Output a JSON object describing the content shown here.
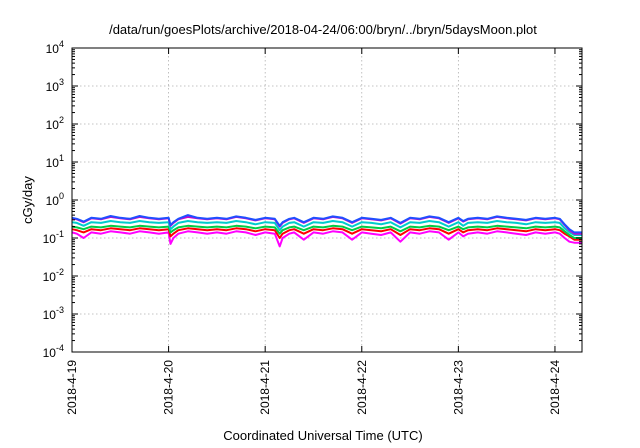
{
  "chart_data": {
    "type": "line",
    "title": "/data/run/goesPlots/archive/2018-04-24/06:00/bryn/../bryn/5daysMoon.plot",
    "xlabel": "Coordinated Universal Time (UTC)",
    "ylabel": "cGy/day",
    "yscale": "log",
    "ylim": [
      0.0001,
      10000
    ],
    "xlim": [
      0,
      5.28
    ],
    "grid": true,
    "x_ticks": [
      {
        "value": 0,
        "label": "2018-4-19"
      },
      {
        "value": 1,
        "label": "2018-4-20"
      },
      {
        "value": 2,
        "label": "2018-4-21"
      },
      {
        "value": 3,
        "label": "2018-4-22"
      },
      {
        "value": 4,
        "label": "2018-4-23"
      },
      {
        "value": 5,
        "label": "2018-4-24"
      }
    ],
    "y_ticks": [
      {
        "value": 0.0001,
        "base": "10",
        "exp": "-4"
      },
      {
        "value": 0.001,
        "base": "10",
        "exp": "-3"
      },
      {
        "value": 0.01,
        "base": "10",
        "exp": "-2"
      },
      {
        "value": 0.1,
        "base": "10",
        "exp": "-1"
      },
      {
        "value": 1,
        "base": "10",
        "exp": "0"
      },
      {
        "value": 10,
        "base": "10",
        "exp": "1"
      },
      {
        "value": 100,
        "base": "10",
        "exp": "2"
      },
      {
        "value": 1000,
        "base": "10",
        "exp": "3"
      },
      {
        "value": 10000,
        "base": "10",
        "exp": "4"
      }
    ],
    "series": [
      {
        "color": "#ff00ff",
        "x": [
          0,
          0.05,
          0.12,
          0.2,
          0.3,
          0.4,
          0.5,
          0.6,
          0.7,
          0.8,
          0.9,
          1.0,
          1.02,
          1.05,
          1.1,
          1.2,
          1.3,
          1.4,
          1.5,
          1.6,
          1.7,
          1.8,
          1.9,
          2.0,
          2.1,
          2.15,
          2.18,
          2.25,
          2.3,
          2.4,
          2.5,
          2.6,
          2.7,
          2.8,
          2.9,
          3.0,
          3.1,
          3.2,
          3.3,
          3.4,
          3.5,
          3.6,
          3.7,
          3.8,
          3.9,
          4.0,
          4.05,
          4.1,
          4.2,
          4.3,
          4.4,
          4.5,
          4.6,
          4.7,
          4.8,
          4.9,
          5.0,
          5.05,
          5.1,
          5.15,
          5.2,
          5.28
        ],
        "y": [
          0.14,
          0.13,
          0.1,
          0.14,
          0.13,
          0.15,
          0.14,
          0.13,
          0.15,
          0.14,
          0.13,
          0.14,
          0.07,
          0.1,
          0.13,
          0.15,
          0.14,
          0.13,
          0.14,
          0.13,
          0.15,
          0.14,
          0.12,
          0.14,
          0.13,
          0.06,
          0.1,
          0.13,
          0.14,
          0.09,
          0.14,
          0.13,
          0.15,
          0.14,
          0.09,
          0.14,
          0.13,
          0.12,
          0.14,
          0.08,
          0.14,
          0.13,
          0.15,
          0.14,
          0.09,
          0.14,
          0.11,
          0.13,
          0.14,
          0.13,
          0.15,
          0.14,
          0.13,
          0.12,
          0.14,
          0.13,
          0.14,
          0.13,
          0.1,
          0.08,
          0.075,
          0.075
        ]
      },
      {
        "color": "#ff0000",
        "x": [
          0,
          0.05,
          0.12,
          0.2,
          0.3,
          0.4,
          0.5,
          0.6,
          0.7,
          0.8,
          0.9,
          1.0,
          1.02,
          1.05,
          1.1,
          1.2,
          1.3,
          1.4,
          1.5,
          1.6,
          1.7,
          1.8,
          1.9,
          2.0,
          2.1,
          2.15,
          2.18,
          2.25,
          2.3,
          2.4,
          2.5,
          2.6,
          2.7,
          2.8,
          2.9,
          3.0,
          3.1,
          3.2,
          3.3,
          3.4,
          3.5,
          3.6,
          3.7,
          3.8,
          3.9,
          4.0,
          4.05,
          4.1,
          4.2,
          4.3,
          4.4,
          4.5,
          4.6,
          4.7,
          4.8,
          4.9,
          5.0,
          5.05,
          5.1,
          5.15,
          5.2,
          5.28
        ],
        "y": [
          0.17,
          0.16,
          0.14,
          0.17,
          0.16,
          0.18,
          0.17,
          0.16,
          0.18,
          0.17,
          0.16,
          0.17,
          0.11,
          0.13,
          0.16,
          0.18,
          0.17,
          0.16,
          0.17,
          0.16,
          0.18,
          0.17,
          0.15,
          0.17,
          0.16,
          0.1,
          0.13,
          0.16,
          0.17,
          0.13,
          0.17,
          0.16,
          0.18,
          0.17,
          0.13,
          0.17,
          0.16,
          0.15,
          0.17,
          0.12,
          0.17,
          0.16,
          0.18,
          0.17,
          0.13,
          0.17,
          0.14,
          0.16,
          0.17,
          0.16,
          0.18,
          0.17,
          0.16,
          0.15,
          0.17,
          0.16,
          0.17,
          0.16,
          0.13,
          0.11,
          0.09,
          0.09
        ]
      },
      {
        "color": "#00cc44",
        "x": [
          0,
          0.05,
          0.12,
          0.2,
          0.3,
          0.4,
          0.5,
          0.6,
          0.7,
          0.8,
          0.9,
          1.0,
          1.02,
          1.05,
          1.1,
          1.2,
          1.3,
          1.4,
          1.5,
          1.6,
          1.7,
          1.8,
          1.9,
          2.0,
          2.1,
          2.15,
          2.18,
          2.25,
          2.3,
          2.4,
          2.5,
          2.6,
          2.7,
          2.8,
          2.9,
          3.0,
          3.1,
          3.2,
          3.3,
          3.4,
          3.5,
          3.6,
          3.7,
          3.8,
          3.9,
          4.0,
          4.05,
          4.1,
          4.2,
          4.3,
          4.4,
          4.5,
          4.6,
          4.7,
          4.8,
          4.9,
          5.0,
          5.05,
          5.1,
          5.15,
          5.2,
          5.28
        ],
        "y": [
          0.2,
          0.19,
          0.17,
          0.2,
          0.19,
          0.21,
          0.2,
          0.19,
          0.21,
          0.2,
          0.19,
          0.2,
          0.14,
          0.16,
          0.19,
          0.21,
          0.2,
          0.19,
          0.2,
          0.19,
          0.21,
          0.2,
          0.18,
          0.2,
          0.19,
          0.13,
          0.16,
          0.19,
          0.2,
          0.16,
          0.2,
          0.19,
          0.21,
          0.2,
          0.16,
          0.2,
          0.19,
          0.18,
          0.2,
          0.15,
          0.2,
          0.19,
          0.21,
          0.2,
          0.16,
          0.2,
          0.17,
          0.19,
          0.2,
          0.19,
          0.21,
          0.2,
          0.19,
          0.18,
          0.2,
          0.19,
          0.2,
          0.19,
          0.15,
          0.12,
          0.1,
          0.1
        ]
      },
      {
        "color": "#00cccc",
        "x": [
          0,
          0.05,
          0.12,
          0.2,
          0.3,
          0.4,
          0.5,
          0.6,
          0.7,
          0.8,
          0.9,
          1.0,
          1.02,
          1.05,
          1.1,
          1.2,
          1.3,
          1.4,
          1.5,
          1.6,
          1.7,
          1.8,
          1.9,
          2.0,
          2.1,
          2.15,
          2.18,
          2.25,
          2.3,
          2.4,
          2.5,
          2.6,
          2.7,
          2.8,
          2.9,
          3.0,
          3.1,
          3.2,
          3.3,
          3.4,
          3.5,
          3.6,
          3.7,
          3.8,
          3.9,
          4.0,
          4.05,
          4.1,
          4.2,
          4.3,
          4.4,
          4.5,
          4.6,
          4.7,
          4.8,
          4.9,
          5.0,
          5.05,
          5.1,
          5.15,
          5.2,
          5.28
        ],
        "y": [
          0.26,
          0.25,
          0.21,
          0.26,
          0.25,
          0.28,
          0.26,
          0.25,
          0.28,
          0.26,
          0.25,
          0.26,
          0.17,
          0.2,
          0.25,
          0.28,
          0.26,
          0.25,
          0.26,
          0.25,
          0.28,
          0.26,
          0.23,
          0.26,
          0.25,
          0.16,
          0.2,
          0.25,
          0.26,
          0.2,
          0.26,
          0.25,
          0.28,
          0.26,
          0.2,
          0.26,
          0.25,
          0.23,
          0.26,
          0.19,
          0.26,
          0.25,
          0.28,
          0.26,
          0.2,
          0.26,
          0.21,
          0.25,
          0.26,
          0.25,
          0.28,
          0.26,
          0.25,
          0.23,
          0.26,
          0.25,
          0.26,
          0.25,
          0.18,
          0.14,
          0.12,
          0.12
        ]
      },
      {
        "color": "#cc00cc",
        "x": [
          0,
          0.05,
          0.12,
          0.2,
          0.3,
          0.4,
          0.5,
          0.6,
          0.7,
          0.8,
          0.9,
          1.0,
          1.02,
          1.05,
          1.1,
          1.2,
          1.3,
          1.4,
          1.5,
          1.6,
          1.7,
          1.8,
          1.9,
          2.0,
          2.1,
          2.15,
          2.18,
          2.25,
          2.3,
          2.4,
          2.5,
          2.6,
          2.7,
          2.8,
          2.9,
          3.0,
          3.1,
          3.2,
          3.3,
          3.4,
          3.5,
          3.6,
          3.7,
          3.8,
          3.9,
          4.0,
          4.05,
          4.1,
          4.2,
          4.3,
          4.4,
          4.5,
          4.6,
          4.7,
          4.8,
          4.9,
          5.0,
          5.05,
          5.1,
          5.15,
          5.2,
          5.28
        ],
        "y": [
          0.33,
          0.31,
          0.26,
          0.33,
          0.31,
          0.36,
          0.33,
          0.31,
          0.36,
          0.33,
          0.31,
          0.33,
          0.21,
          0.25,
          0.31,
          0.36,
          0.33,
          0.31,
          0.33,
          0.31,
          0.36,
          0.33,
          0.29,
          0.33,
          0.31,
          0.2,
          0.25,
          0.31,
          0.33,
          0.25,
          0.33,
          0.31,
          0.36,
          0.33,
          0.25,
          0.33,
          0.31,
          0.29,
          0.33,
          0.24,
          0.33,
          0.31,
          0.36,
          0.33,
          0.25,
          0.33,
          0.27,
          0.31,
          0.33,
          0.31,
          0.36,
          0.33,
          0.31,
          0.29,
          0.33,
          0.31,
          0.33,
          0.31,
          0.22,
          0.16,
          0.13,
          0.13
        ]
      },
      {
        "color": "#1f4fff",
        "x": [
          0,
          0.05,
          0.12,
          0.2,
          0.3,
          0.4,
          0.5,
          0.6,
          0.7,
          0.8,
          0.9,
          1.0,
          1.02,
          1.05,
          1.1,
          1.2,
          1.3,
          1.4,
          1.5,
          1.6,
          1.7,
          1.8,
          1.9,
          2.0,
          2.1,
          2.15,
          2.18,
          2.25,
          2.3,
          2.4,
          2.5,
          2.6,
          2.7,
          2.8,
          2.9,
          3.0,
          3.1,
          3.2,
          3.3,
          3.4,
          3.5,
          3.6,
          3.7,
          3.8,
          3.9,
          4.0,
          4.05,
          4.1,
          4.2,
          4.3,
          4.4,
          4.5,
          4.6,
          4.7,
          4.8,
          4.9,
          5.0,
          5.05,
          5.1,
          5.15,
          5.2,
          5.28
        ],
        "y": [
          0.34,
          0.32,
          0.27,
          0.34,
          0.32,
          0.38,
          0.34,
          0.32,
          0.38,
          0.34,
          0.32,
          0.34,
          0.22,
          0.26,
          0.32,
          0.4,
          0.34,
          0.32,
          0.34,
          0.32,
          0.37,
          0.34,
          0.3,
          0.34,
          0.32,
          0.21,
          0.26,
          0.32,
          0.34,
          0.26,
          0.34,
          0.32,
          0.37,
          0.34,
          0.26,
          0.34,
          0.32,
          0.3,
          0.34,
          0.25,
          0.34,
          0.32,
          0.37,
          0.34,
          0.26,
          0.34,
          0.28,
          0.32,
          0.34,
          0.32,
          0.37,
          0.34,
          0.32,
          0.3,
          0.34,
          0.32,
          0.34,
          0.32,
          0.23,
          0.17,
          0.14,
          0.14
        ]
      }
    ]
  }
}
